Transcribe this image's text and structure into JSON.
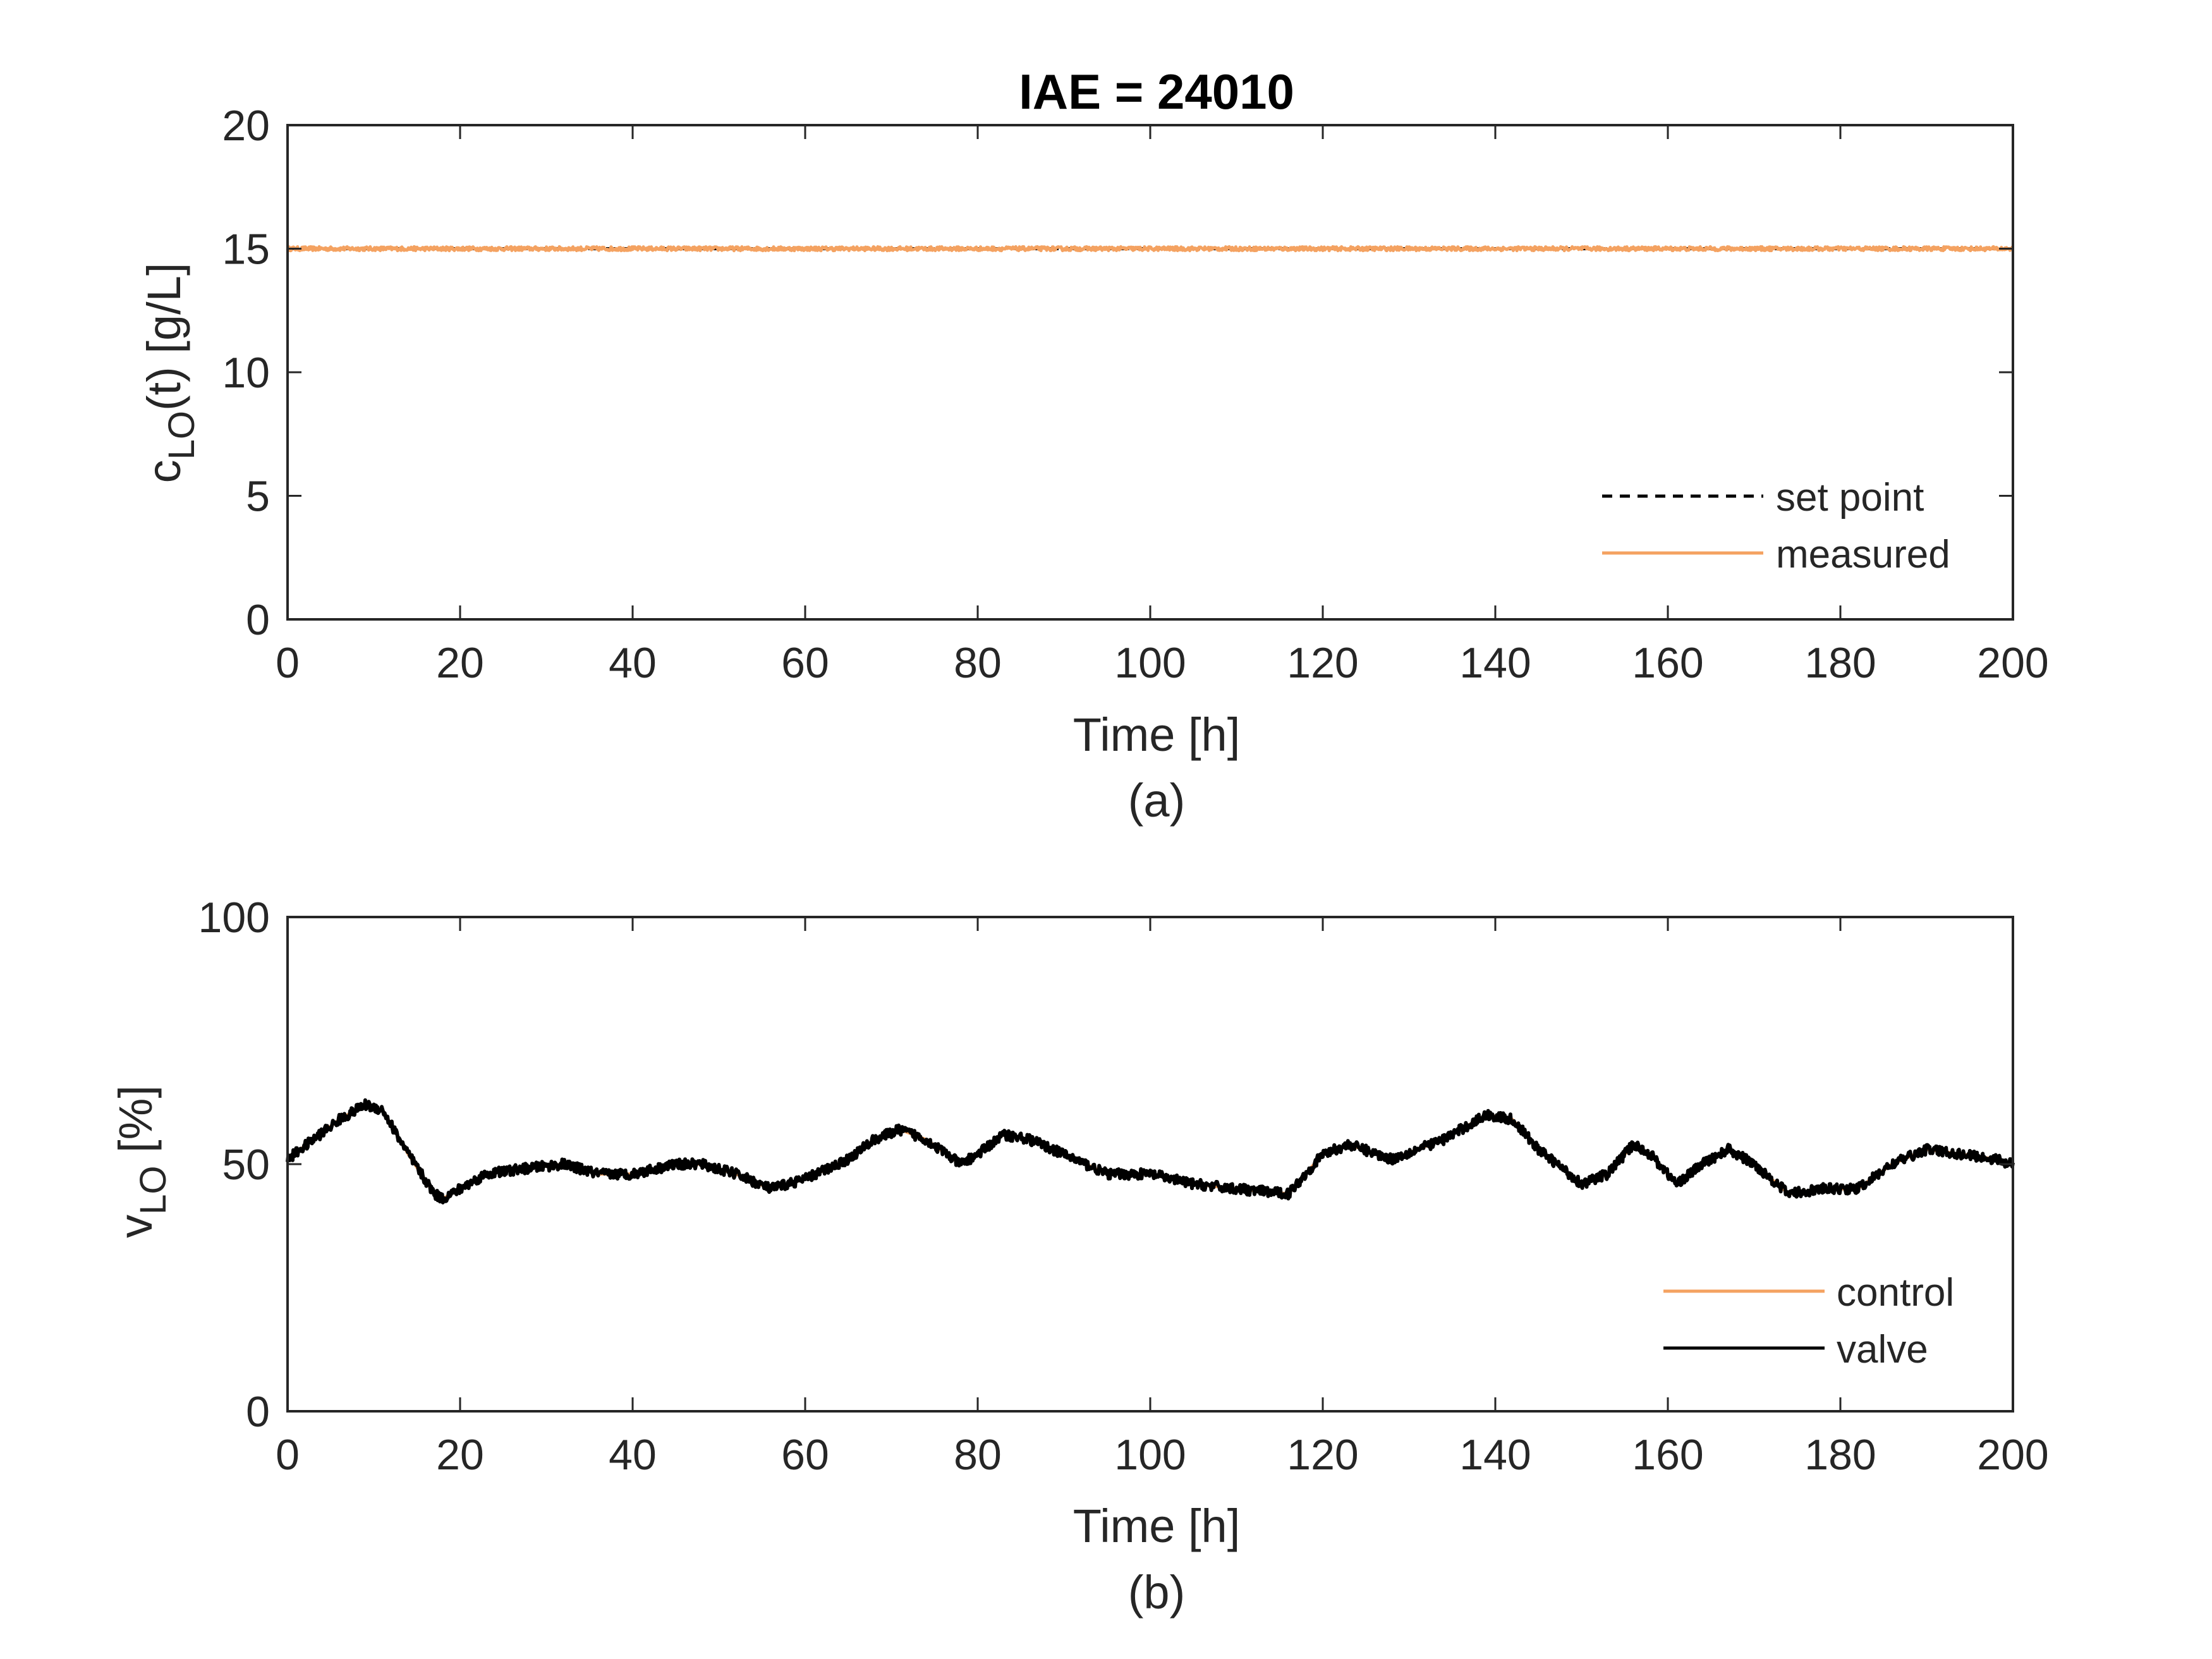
{
  "colors": {
    "setpoint": "#000000",
    "measured": "#f4a261",
    "control": "#f4a261",
    "valve": "#000000",
    "axis": "#262626"
  },
  "chart_data": [
    {
      "type": "line",
      "title": "IAE = 24010",
      "xlabel": "Time [h]",
      "ylabel": {
        "main": "c",
        "sub": "LO",
        "rest": "(t) [g/L]"
      },
      "caption": "(a)",
      "xlim": [
        0,
        200
      ],
      "ylim": [
        0,
        20
      ],
      "xticks": [
        "0",
        "20",
        "40",
        "60",
        "80",
        "100",
        "120",
        "140",
        "160",
        "180",
        "200"
      ],
      "yticks": [
        "0",
        "5",
        "10",
        "15",
        "20"
      ],
      "grid": false,
      "legend": {
        "position": "bottom-right"
      },
      "series": [
        {
          "name": "set point",
          "style": "dashed",
          "color": "#000000",
          "x": [
            0,
            200
          ],
          "y": [
            15,
            15
          ]
        },
        {
          "name": "measured",
          "style": "solid",
          "color": "#f4a261",
          "x": [
            0,
            200
          ],
          "y": [
            15,
            15
          ],
          "noise": 0.08
        }
      ]
    },
    {
      "type": "line",
      "title": "",
      "xlabel": "Time [h]",
      "ylabel": {
        "main": "v",
        "sub": "LO",
        "rest": " [%]"
      },
      "caption": "(b)",
      "xlim": [
        0,
        200
      ],
      "ylim": [
        0,
        100
      ],
      "xticks": [
        "0",
        "20",
        "40",
        "60",
        "80",
        "100",
        "120",
        "140",
        "160",
        "180",
        "200"
      ],
      "yticks": [
        "0",
        "50",
        "100"
      ],
      "grid": false,
      "legend": {
        "position": "bottom-right"
      },
      "series": [
        {
          "name": "control",
          "style": "solid",
          "color": "#f4a261",
          "x": [
            0,
            3,
            6,
            9,
            11,
            14,
            17,
            18,
            20,
            23,
            27,
            32,
            36,
            40,
            45,
            48,
            52,
            56,
            60,
            65,
            68,
            71,
            74,
            78,
            80,
            83,
            86,
            90,
            95,
            100,
            105,
            110,
            116,
            120,
            123,
            128,
            134,
            139,
            142,
            145,
            150,
            153,
            156,
            158,
            161,
            164,
            167,
            170,
            174,
            178,
            182,
            186,
            190,
            194,
            198,
            200
          ],
          "y": [
            51,
            55,
            59,
            62,
            61,
            52,
            44,
            43,
            45,
            48,
            49,
            50,
            48,
            48,
            50,
            50,
            48,
            45,
            47,
            51,
            55,
            57,
            55,
            50,
            52,
            56,
            55,
            52,
            48,
            48,
            46,
            45,
            44,
            52,
            54,
            51,
            55,
            60,
            59,
            53,
            46,
            48,
            54,
            52,
            46,
            50,
            53,
            50,
            44,
            45,
            45,
            50,
            53,
            52,
            51,
            50
          ]
        },
        {
          "name": "valve",
          "style": "solid",
          "color": "#000000",
          "x": [
            0,
            3,
            6,
            9,
            11,
            14,
            17,
            18,
            20,
            23,
            27,
            32,
            36,
            40,
            45,
            48,
            52,
            56,
            60,
            65,
            68,
            71,
            74,
            78,
            80,
            83,
            86,
            90,
            95,
            100,
            105,
            110,
            116,
            120,
            123,
            128,
            134,
            139,
            142,
            145,
            150,
            153,
            156,
            158,
            161,
            164,
            167,
            170,
            174,
            178,
            182,
            186,
            190,
            194,
            198,
            200
          ],
          "y": [
            51,
            55,
            59,
            62,
            61,
            52,
            44,
            43,
            45,
            48,
            49,
            50,
            48,
            48,
            50,
            50,
            48,
            45,
            47,
            51,
            55,
            57,
            55,
            50,
            52,
            56,
            55,
            52,
            48,
            48,
            46,
            45,
            44,
            52,
            54,
            51,
            55,
            60,
            59,
            53,
            46,
            48,
            54,
            52,
            46,
            50,
            53,
            50,
            44,
            45,
            45,
            50,
            53,
            52,
            51,
            50
          ],
          "noise": 1.0
        }
      ]
    }
  ]
}
